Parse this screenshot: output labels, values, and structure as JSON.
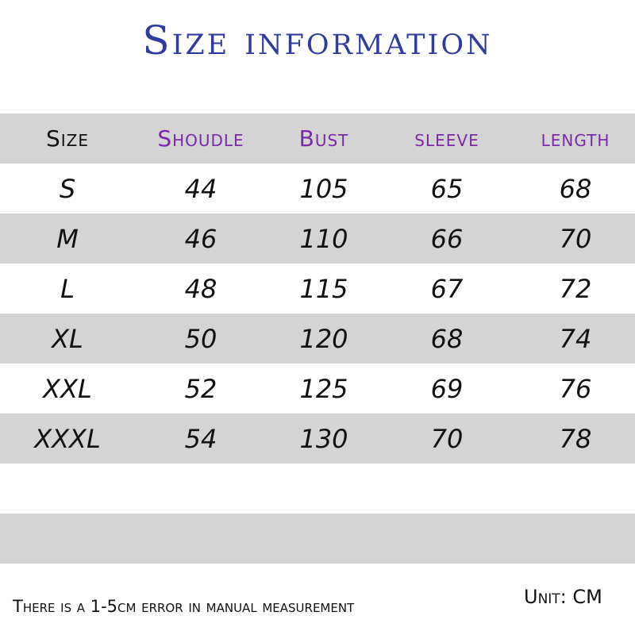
{
  "title": "Size information",
  "headers": [
    "Size",
    "Shoudle",
    "Bust",
    "sleeve",
    "length"
  ],
  "rows": [
    [
      "S",
      "44",
      "105",
      "65",
      "68"
    ],
    [
      "M",
      "46",
      "110",
      "66",
      "70"
    ],
    [
      "L",
      "48",
      "115",
      "67",
      "72"
    ],
    [
      "XL",
      "50",
      "120",
      "68",
      "74"
    ],
    [
      "XXL",
      "52",
      "125",
      "69",
      "76"
    ],
    [
      "XXXL",
      "54",
      "130",
      "70",
      "78"
    ]
  ],
  "footer": {
    "note": "There is a 1-5cm error in manual measurement",
    "unit": "Unit: CM"
  },
  "colors": {
    "title": "#2f3b9f",
    "header_accent": "#7a2aa8",
    "band": "#d4d4d4"
  }
}
